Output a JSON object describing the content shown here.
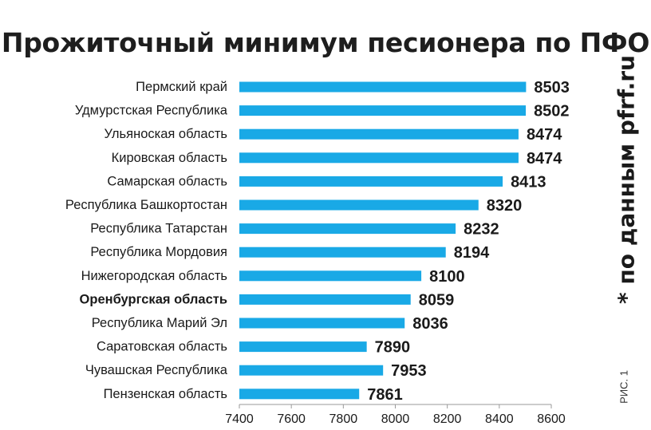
{
  "title": "Прожиточный минимум песионера по ПФО",
  "source_note": "* по данным pfrf.ru",
  "figure_label": "РИС. 1",
  "colors": {
    "bar": "#19a9e6",
    "text": "#1a1a1a",
    "axis": "#9a9a9a"
  },
  "chart_data": {
    "type": "bar",
    "orientation": "horizontal",
    "categories": [
      "Пермский край",
      "Удмурстская Республика",
      "Ульяноская область",
      "Кировская область",
      "Самарская область",
      "Республика Башкортостан",
      "Республика Татарстан",
      "Республика Мордовия",
      "Нижегородская область",
      "Оренбургская область",
      "Республика Марий Эл",
      "Саратовская область",
      "Чувашская Республика",
      "Пензенская область"
    ],
    "values": [
      8503,
      8502,
      8474,
      8474,
      8413,
      8320,
      8232,
      8194,
      8100,
      8059,
      8036,
      7890,
      7953,
      7861
    ],
    "highlighted_category": "Оренбургская область",
    "xlim": [
      7400,
      8600
    ],
    "xticks": [
      7400,
      7600,
      7800,
      8000,
      8200,
      8400,
      8600
    ],
    "grid": false,
    "legend": "none"
  }
}
